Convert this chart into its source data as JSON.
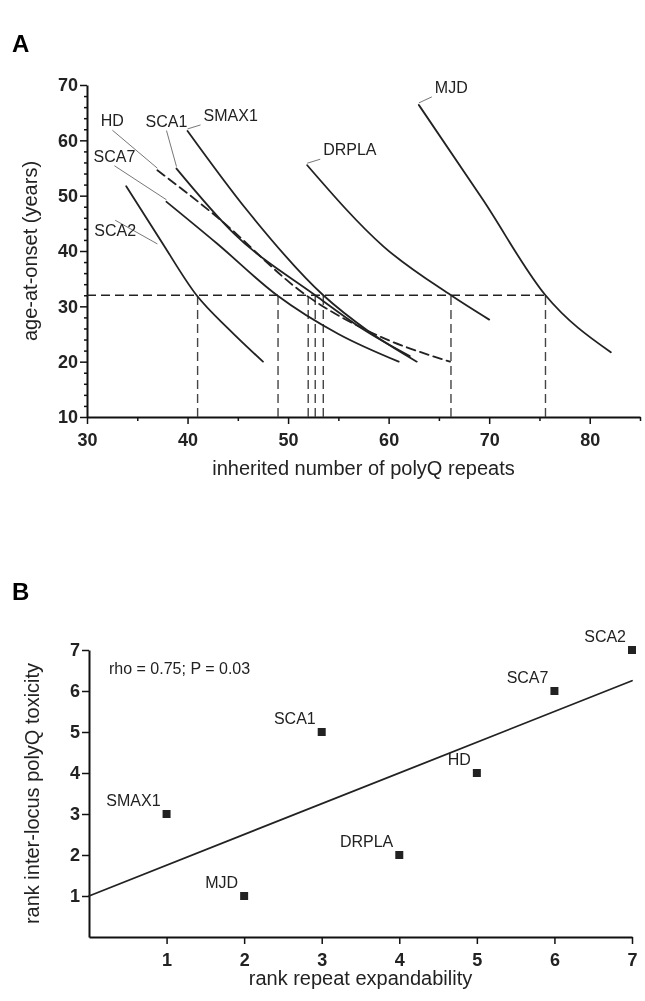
{
  "chart_data": [
    {
      "type": "line",
      "title": "A",
      "xlabel": "inherited number of polyQ repeats",
      "ylabel": "age-at-onset (years)",
      "xlim": [
        30,
        85
      ],
      "ylim": [
        10,
        70
      ],
      "xticks": [
        30,
        {
          "value": 35,
          "label": null
        },
        40,
        {
          "value": 45,
          "label": null
        },
        50,
        {
          "value": 55,
          "label": null
        },
        60,
        {
          "value": 65,
          "label": null
        },
        70,
        {
          "value": 75,
          "label": null
        },
        80,
        {
          "value": 85,
          "label": null
        }
      ],
      "yticks": [
        10,
        {
          "value": 12,
          "label": null
        },
        {
          "value": 14,
          "label": null
        },
        {
          "value": 16,
          "label": null
        },
        {
          "value": 18,
          "label": null
        },
        20,
        {
          "value": 22,
          "label": null
        },
        {
          "value": 24,
          "label": null
        },
        {
          "value": 26,
          "label": null
        },
        {
          "value": 28,
          "label": null
        },
        30,
        {
          "value": 32,
          "label": null
        },
        {
          "value": 34,
          "label": null
        },
        {
          "value": 36,
          "label": null
        },
        {
          "value": 38,
          "label": null
        },
        40,
        {
          "value": 42,
          "label": null
        },
        {
          "value": 44,
          "label": null
        },
        {
          "value": 46,
          "label": null
        },
        {
          "value": 48,
          "label": null
        },
        50,
        {
          "value": 52,
          "label": null
        },
        {
          "value": 54,
          "label": null
        },
        {
          "value": 56,
          "label": null
        },
        {
          "value": 58,
          "label": null
        },
        60,
        {
          "value": 62,
          "label": null
        },
        {
          "value": 64,
          "label": null
        },
        {
          "value": 66,
          "label": null
        },
        {
          "value": 68,
          "label": null
        },
        70
      ],
      "marker": "none",
      "series": [
        {
          "name": "SCA2",
          "color": "#222222",
          "x": [
            33.9,
            37.3,
            40.9,
            44.2,
            47.5
          ],
          "values": [
            51.7,
            42,
            32,
            25.7,
            20
          ]
        },
        {
          "name": "SCA7",
          "color": "#222222",
          "x": [
            37.9,
            42.9,
            48.9,
            55,
            61
          ],
          "values": [
            48.9,
            41.4,
            32,
            25,
            20
          ]
        },
        {
          "name": "HD",
          "color": "#222222",
          "line_style": "dashed",
          "x": [
            37,
            42.9,
            51.8,
            58,
            66.1
          ],
          "values": [
            54.6,
            46.2,
            32,
            25.5,
            20
          ]
        },
        {
          "name": "SCA1",
          "color": "#222222",
          "x": [
            38.9,
            44.6,
            52.7,
            57.5,
            62.1
          ],
          "values": [
            54.9,
            43.2,
            32,
            25.8,
            21
          ]
        },
        {
          "name": "SMAX1",
          "color": "#222222",
          "x": [
            40,
            45.9,
            53.5,
            58,
            62.8
          ],
          "values": [
            61.7,
            47.4,
            32,
            25.5,
            20
          ]
        },
        {
          "name": "DRPLA",
          "color": "#222222",
          "x": [
            51.9,
            59.5,
            66.2,
            70
          ],
          "values": [
            55.5,
            40.8,
            32,
            27.6
          ]
        },
        {
          "name": "MJD",
          "color": "#222222",
          "x": [
            63,
            69.4,
            75.6,
            82.1
          ],
          "values": [
            66.4,
            49.2,
            32,
            21.7
          ]
        }
      ],
      "ref_lines": [
        {
          "axis": "y",
          "value": 32,
          "line_style": "dashed",
          "color": "#222222"
        },
        {
          "axis": "x",
          "value": 41,
          "line_style": "dashed",
          "color": "#444444"
        },
        {
          "axis": "x",
          "value": 49,
          "line_style": "dashed",
          "color": "#444444"
        },
        {
          "axis": "x",
          "value": 52,
          "line_style": "dashed",
          "color": "#444444"
        },
        {
          "axis": "x",
          "value": 52.7,
          "line_style": "dashed",
          "color": "#444444"
        },
        {
          "axis": "x",
          "value": 53.5,
          "line_style": "dashed",
          "color": "#444444"
        },
        {
          "axis": "x",
          "value": 66.2,
          "line_style": "dashed",
          "color": "#444444"
        },
        {
          "axis": "x",
          "value": 75.6,
          "line_style": "dashed",
          "color": "#444444"
        }
      ]
    },
    {
      "type": "scatter",
      "title": "B",
      "xlabel": "rank repeat expandability",
      "ylabel": "rank inter-locus polyQ toxicity",
      "xlim": [
        0,
        7
      ],
      "ylim": [
        0,
        7
      ],
      "xticks": [
        1,
        2,
        3,
        4,
        5,
        6,
        7
      ],
      "yticks": [
        1,
        2,
        3,
        4,
        5,
        6,
        7
      ],
      "marker": "square",
      "annotations": [
        "rho = 0.75; P = 0.03"
      ],
      "series": [
        {
          "name": "SMAX1",
          "color": "#222222",
          "x": [
            1
          ],
          "values": [
            3
          ]
        },
        {
          "name": "MJD",
          "color": "#222222",
          "x": [
            2
          ],
          "values": [
            1
          ]
        },
        {
          "name": "SCA1",
          "color": "#222222",
          "x": [
            3
          ],
          "values": [
            5
          ]
        },
        {
          "name": "DRPLA",
          "color": "#222222",
          "x": [
            4
          ],
          "values": [
            2
          ]
        },
        {
          "name": "HD",
          "color": "#222222",
          "x": [
            5
          ],
          "values": [
            4
          ]
        },
        {
          "name": "SCA7",
          "color": "#222222",
          "x": [
            6
          ],
          "values": [
            6
          ]
        },
        {
          "name": "SCA2",
          "color": "#222222",
          "x": [
            7
          ],
          "values": [
            7
          ]
        },
        {
          "type": "line",
          "marker": "none",
          "color": "#222222",
          "x": [
            0,
            7
          ],
          "values": [
            1,
            6.25
          ]
        }
      ]
    }
  ]
}
